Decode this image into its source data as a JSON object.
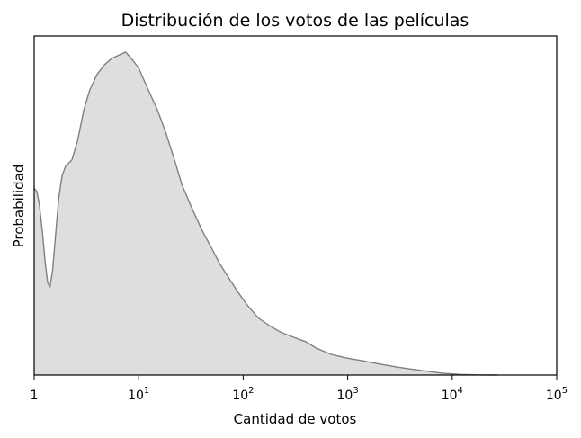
{
  "chart_data": {
    "type": "area",
    "title": "Distribución de los votos de las películas",
    "xlabel": "Cantidad de votos",
    "ylabel": "Probabilidad",
    "xscale": "log",
    "xlim": [
      1,
      100000
    ],
    "x_ticks": [
      {
        "base": "1",
        "exp": ""
      },
      {
        "base": "10",
        "exp": "1"
      },
      {
        "base": "10",
        "exp": "2"
      },
      {
        "base": "10",
        "exp": "3"
      },
      {
        "base": "10",
        "exp": "4"
      },
      {
        "base": "10",
        "exp": "5"
      }
    ],
    "y_ticks_shown": false,
    "grid": false,
    "fill_color": "#dedede",
    "line_color": "#808080",
    "series": [
      {
        "x": [
          1.0,
          1.06,
          1.12,
          1.2,
          1.28,
          1.35,
          1.42,
          1.5,
          1.6,
          1.72,
          1.85,
          2.0,
          2.15,
          2.3,
          2.6,
          3.0,
          3.4,
          4.0,
          4.7,
          5.5,
          6.4,
          7.5,
          8.5,
          10,
          12,
          15,
          18,
          22,
          26,
          32,
          40,
          50,
          60,
          75,
          90,
          110,
          140,
          180,
          230,
          300,
          400,
          500,
          700,
          1000,
          1400,
          2000,
          3000,
          4000,
          5500,
          8000,
          12000,
          18000,
          27000
        ],
        "y": [
          0.59,
          0.58,
          0.54,
          0.45,
          0.35,
          0.29,
          0.28,
          0.33,
          0.44,
          0.56,
          0.63,
          0.66,
          0.67,
          0.68,
          0.74,
          0.84,
          0.9,
          0.95,
          0.98,
          1.0,
          1.01,
          1.02,
          1.0,
          0.97,
          0.91,
          0.84,
          0.77,
          0.68,
          0.6,
          0.53,
          0.46,
          0.4,
          0.35,
          0.3,
          0.26,
          0.22,
          0.18,
          0.155,
          0.135,
          0.12,
          0.105,
          0.085,
          0.065,
          0.053,
          0.045,
          0.035,
          0.025,
          0.019,
          0.013,
          0.006,
          0.002,
          0.0005,
          0.0
        ]
      }
    ]
  }
}
